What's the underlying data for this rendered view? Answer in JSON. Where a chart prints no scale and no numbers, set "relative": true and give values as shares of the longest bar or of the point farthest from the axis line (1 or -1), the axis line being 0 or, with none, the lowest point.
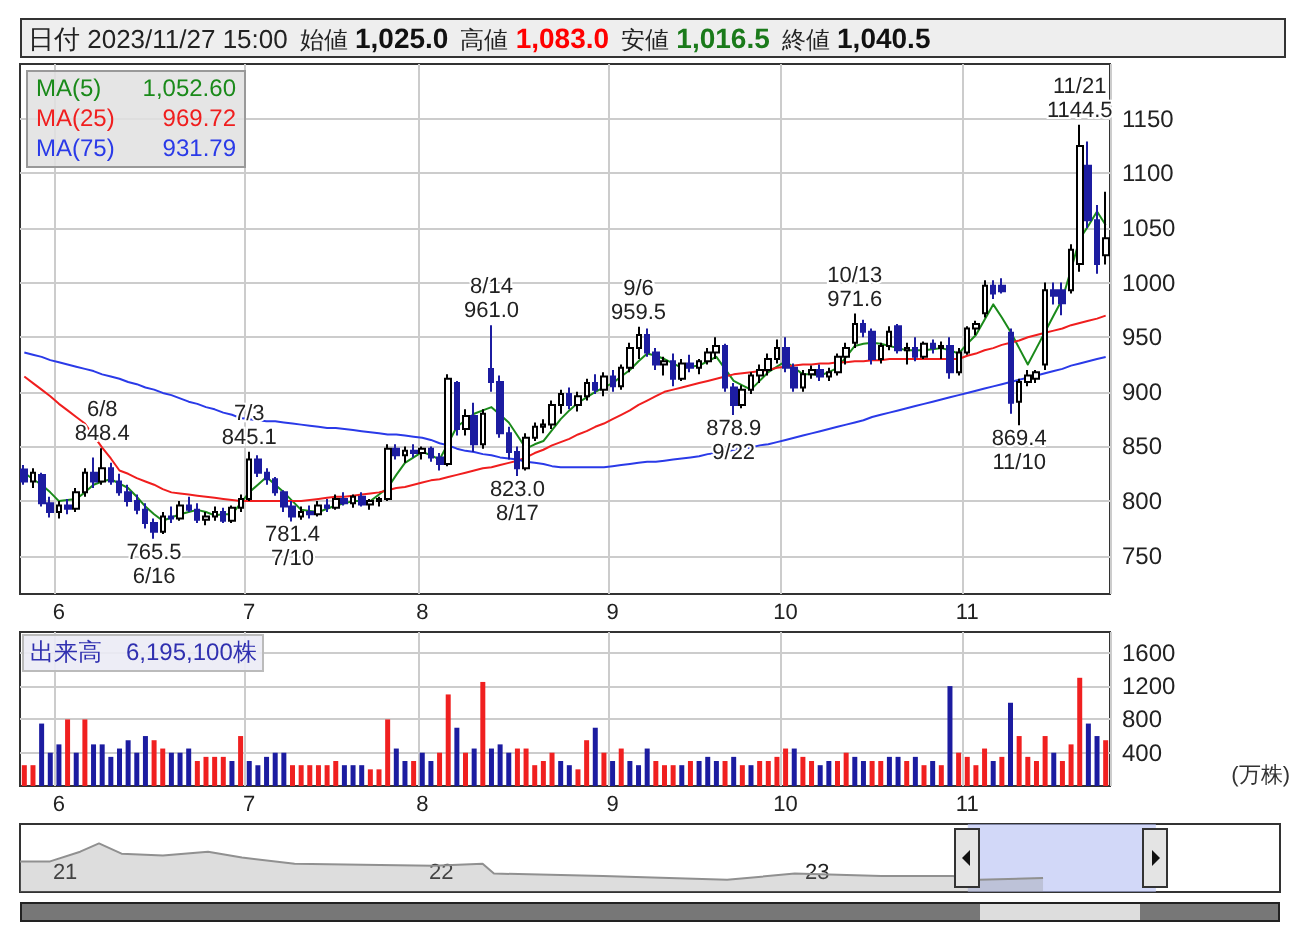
{
  "chart_data": [
    {
      "type": "candlestick",
      "title": "日付 2023/11/27 15:00",
      "colors": [
        "#1c1ca0",
        "#ffffff",
        "#1c1ca0",
        "#1c1ca0",
        "#ffffff",
        "#1c1ca0",
        "#ffffff",
        "#ffffff",
        "#1c1ca0",
        "#ffffff",
        "#1c1ca0",
        "#1c1ca0",
        "#1c1ca0",
        "#1c1ca0",
        "#1c1ca0",
        "#1c1ca0",
        "#ffffff",
        "#1c1ca0",
        "#ffffff",
        "#1c1ca0",
        "#1c1ca0",
        "#ffffff",
        "#ffffff",
        "#1c1ca0",
        "#ffffff",
        "#ffffff",
        "#ffffff",
        "#1c1ca0",
        "#1c1ca0",
        "#1c1ca0",
        "#1c1ca0",
        "#1c1ca0",
        "#ffffff",
        "#1c1ca0",
        "#ffffff",
        "#1c1ca0",
        "#ffffff",
        "#1c1ca0",
        "#ffffff",
        "#1c1ca0",
        "#ffffff",
        "#ffffff",
        "#ffffff",
        "#1c1ca0",
        "#ffffff",
        "#1c1ca0",
        "#ffffff",
        "#1c1ca0",
        "#1c1ca0",
        "#ffffff",
        "#1c1ca0",
        "#ffffff",
        "#1c1ca0",
        "#ffffff",
        "#1c1ca0",
        "#1c1ca0",
        "#1c1ca0",
        "#1c1ca0",
        "#ffffff",
        "#ffffff",
        "#ffffff",
        "#ffffff",
        "#ffffff",
        "#1c1ca0",
        "#ffffff",
        "#ffffff",
        "#1c1ca0",
        "#ffffff",
        "#1c1ca0",
        "#ffffff",
        "#ffffff",
        "#ffffff",
        "#1c1ca0",
        "#1c1ca0",
        "#ffffff",
        "#1c1ca0",
        "#ffffff",
        "#1c1ca0",
        "#ffffff",
        "#ffffff",
        "#ffffff",
        "#1c1ca0",
        "#1c1ca0",
        "#ffffff",
        "#ffffff",
        "#ffffff",
        "#ffffff",
        "#ffffff",
        "#1c1ca0",
        "#1c1ca0",
        "#ffffff",
        "#ffffff",
        "#1c1ca0",
        "#ffffff",
        "#ffffff",
        "#ffffff",
        "#ffffff",
        "#1c1ca0",
        "#1c1ca0",
        "#ffffff",
        "#ffffff",
        "#1c1ca0",
        "#ffffff",
        "#1c1ca0",
        "#ffffff",
        "#1c1ca0",
        "#ffffff",
        "#1c1ca0",
        "#ffffff",
        "#ffffff",
        "#ffffff",
        "#ffffff",
        "#1c1ca0",
        "#1c1ca0",
        "#1c1ca0",
        "#ffffff",
        "#ffffff",
        "#ffffff",
        "#ffffff",
        "#1c1ca0",
        "#1c1ca0",
        "#ffffff",
        "#ffffff",
        "#1c1ca0",
        "#1c1ca0",
        "#ffffff"
      ],
      "annotations": [
        "始値",
        "1,025.0",
        "高値",
        "1,083.0",
        "安値",
        "1,016.5",
        "終値",
        "1,040.5",
        "1,052.60",
        "969.72",
        "931.79",
        {
          "text": "6/8\n848.4",
          "y": 848.4
        },
        {
          "text": "765.5\n6/16",
          "y": 765.5
        },
        {
          "text": "7/3\n845.1",
          "y": 845.1
        },
        {
          "text": "781.4\n7/10",
          "y": 781.4
        },
        {
          "text": "8/14\n961.0",
          "y": 961.0
        },
        {
          "text": "823.0\n8/17",
          "y": 823.0
        },
        {
          "text": "9/6\n959.5",
          "y": 959.5
        },
        {
          "text": "878.9\n9/22",
          "y": 878.9
        },
        {
          "text": "10/13\n971.6",
          "y": 971.6
        },
        {
          "text": "869.4\n11/10",
          "y": 869.4
        },
        {
          "text": "11/21\n1144.5",
          "y": 1144.5
        }
      ],
      "categories": [
        null,
        null,
        null,
        null,
        "6",
        null,
        null,
        null,
        null,
        null,
        null,
        null,
        null,
        null,
        null,
        null,
        null,
        null,
        null,
        null,
        null,
        null,
        null,
        null,
        null,
        null,
        "7",
        null,
        null,
        null,
        null,
        null,
        null,
        null,
        null,
        null,
        null,
        null,
        null,
        null,
        null,
        null,
        null,
        null,
        null,
        null,
        "8",
        null,
        null,
        null,
        null,
        null,
        null,
        null,
        null,
        null,
        null,
        null,
        null,
        null,
        null,
        null,
        null,
        null,
        null,
        null,
        null,
        null,
        "9",
        null,
        null,
        null,
        null,
        null,
        null,
        null,
        null,
        null,
        null,
        null,
        null,
        null,
        null,
        null,
        null,
        null,
        null,
        null,
        "10",
        null,
        null,
        null,
        null,
        null,
        null,
        null,
        null,
        null,
        null,
        null,
        null,
        null,
        null,
        null,
        null,
        null,
        null,
        null,
        null,
        "11",
        null,
        null,
        null,
        null,
        null,
        null,
        null,
        null,
        null,
        null,
        null,
        null,
        null,
        null,
        null,
        null
      ],
      "ohlc": [
        [
          829,
          833,
          815,
          818
        ],
        [
          818,
          830,
          812,
          826
        ],
        [
          824,
          826,
          795,
          798
        ],
        [
          798,
          804,
          785,
          790
        ],
        [
          790,
          800,
          784,
          796
        ],
        [
          796,
          802,
          788,
          793
        ],
        [
          793,
          812,
          790,
          808
        ],
        [
          808,
          830,
          804,
          826
        ],
        [
          826,
          840,
          812,
          818
        ],
        [
          818,
          848.4,
          815,
          830
        ],
        [
          830,
          835,
          815,
          818
        ],
        [
          818,
          825,
          805,
          808
        ],
        [
          808,
          815,
          795,
          800
        ],
        [
          800,
          806,
          788,
          792
        ],
        [
          792,
          798,
          775,
          780
        ],
        [
          780,
          784,
          765.5,
          772
        ],
        [
          772,
          790,
          770,
          786
        ],
        [
          786,
          795,
          780,
          784
        ],
        [
          784,
          800,
          782,
          796
        ],
        [
          796,
          804,
          790,
          792
        ],
        [
          792,
          798,
          780,
          783
        ],
        [
          783,
          790,
          778,
          786
        ],
        [
          786,
          795,
          782,
          790
        ],
        [
          790,
          794,
          780,
          782
        ],
        [
          782,
          796,
          780,
          794
        ],
        [
          794,
          806,
          790,
          802
        ],
        [
          802,
          845.1,
          800,
          838
        ],
        [
          838,
          842,
          822,
          826
        ],
        [
          826,
          830,
          815,
          820
        ],
        [
          820,
          822,
          805,
          808
        ],
        [
          808,
          810,
          790,
          795
        ],
        [
          795,
          800,
          781.4,
          786
        ],
        [
          786,
          795,
          783,
          790
        ],
        [
          790,
          796,
          784,
          788
        ],
        [
          788,
          800,
          786,
          796
        ],
        [
          796,
          802,
          790,
          794
        ],
        [
          794,
          806,
          792,
          802
        ],
        [
          802,
          808,
          796,
          798
        ],
        [
          798,
          806,
          794,
          804
        ],
        [
          804,
          808,
          795,
          797
        ],
        [
          797,
          802,
          792,
          800
        ],
        [
          800,
          804,
          795,
          802
        ],
        [
          802,
          852,
          800,
          848
        ],
        [
          848,
          852,
          838,
          842
        ],
        [
          842,
          850,
          835,
          846
        ],
        [
          846,
          852,
          840,
          844
        ],
        [
          844,
          850,
          838,
          848
        ],
        [
          848,
          850,
          836,
          840
        ],
        [
          840,
          844,
          828,
          834
        ],
        [
          834,
          916,
          832,
          912
        ],
        [
          908,
          910,
          860,
          866
        ],
        [
          866,
          884,
          860,
          878
        ],
        [
          878,
          890,
          845,
          852
        ],
        [
          852,
          884,
          848,
          880
        ],
        [
          921,
          961.0,
          900,
          909
        ],
        [
          909,
          915,
          858,
          862
        ],
        [
          862,
          868,
          838,
          845
        ],
        [
          845,
          850,
          823.0,
          830
        ],
        [
          830,
          862,
          828,
          858
        ],
        [
          858,
          872,
          855,
          868
        ],
        [
          868,
          875,
          862,
          870
        ],
        [
          870,
          892,
          866,
          888
        ],
        [
          888,
          902,
          880,
          898
        ],
        [
          898,
          904,
          884,
          888
        ],
        [
          888,
          900,
          882,
          896
        ],
        [
          896,
          912,
          892,
          908
        ],
        [
          908,
          916,
          898,
          902
        ],
        [
          902,
          918,
          896,
          914
        ],
        [
          914,
          920,
          900,
          905
        ],
        [
          905,
          925,
          902,
          922
        ],
        [
          922,
          945,
          918,
          940
        ],
        [
          940,
          959.5,
          930,
          952
        ],
        [
          952,
          958,
          932,
          936
        ],
        [
          936,
          940,
          920,
          925
        ],
        [
          925,
          932,
          915,
          928
        ],
        [
          928,
          935,
          905,
          912
        ],
        [
          912,
          930,
          910,
          926
        ],
        [
          926,
          934,
          918,
          922
        ],
        [
          922,
          930,
          916,
          928
        ],
        [
          928,
          940,
          925,
          936
        ],
        [
          936,
          950,
          930,
          942
        ],
        [
          942,
          944,
          900,
          904
        ],
        [
          904,
          908,
          878.9,
          888
        ],
        [
          888,
          906,
          885,
          902
        ],
        [
          902,
          918,
          898,
          915
        ],
        [
          915,
          925,
          908,
          920
        ],
        [
          920,
          935,
          915,
          930
        ],
        [
          930,
          948,
          926,
          940
        ],
        [
          940,
          950,
          918,
          922
        ],
        [
          922,
          926,
          900,
          904
        ],
        [
          904,
          920,
          900,
          916
        ],
        [
          916,
          924,
          912,
          920
        ],
        [
          920,
          925,
          910,
          914
        ],
        [
          914,
          922,
          910,
          918
        ],
        [
          918,
          935,
          915,
          932
        ],
        [
          932,
          945,
          925,
          940
        ],
        [
          945,
          971.6,
          940,
          962
        ],
        [
          962,
          966,
          950,
          955
        ],
        [
          955,
          958,
          925,
          930
        ],
        [
          930,
          945,
          926,
          942
        ],
        [
          942,
          960,
          938,
          955
        ],
        [
          960,
          962,
          935,
          938
        ],
        [
          938,
          945,
          925,
          940
        ],
        [
          940,
          950,
          928,
          932
        ],
        [
          932,
          946,
          930,
          944
        ],
        [
          944,
          948,
          935,
          940
        ],
        [
          940,
          946,
          930,
          942
        ],
        [
          942,
          950,
          912,
          918
        ],
        [
          918,
          940,
          915,
          936
        ],
        [
          936,
          960,
          934,
          958
        ],
        [
          958,
          965,
          952,
          962
        ],
        [
          972,
          1002,
          968,
          997
        ],
        [
          997,
          1002,
          985,
          990
        ],
        [
          997,
          1004,
          990,
          992
        ],
        [
          954,
          958,
          880,
          890
        ],
        [
          891,
          912,
          869.4,
          909
        ],
        [
          909,
          920,
          905,
          915
        ],
        [
          912,
          920,
          908,
          918
        ],
        [
          925,
          1000,
          920,
          993
        ],
        [
          993,
          1000,
          980,
          988
        ],
        [
          993,
          1000,
          970,
          981
        ],
        [
          993,
          1035,
          990,
          1030
        ],
        [
          1017,
          1144.5,
          1010,
          1125
        ],
        [
          1107,
          1129,
          1050,
          1057
        ],
        [
          1057,
          1071,
          1008,
          1017
        ],
        [
          1025,
          1083,
          1016.5,
          1040.5
        ]
      ],
      "series": [
        {
          "name": "MA(5)",
          "type": "line",
          "color": "#1a8a1a",
          "values": [
            826,
            820,
            815,
            808,
            800,
            801,
            802,
            808,
            815,
            818,
            820,
            816,
            812,
            804,
            795,
            788,
            782,
            785,
            788,
            790,
            792,
            790,
            787,
            788,
            788,
            798,
            808,
            815,
            822,
            815,
            808,
            800,
            792,
            791,
            790,
            793,
            796,
            798,
            800,
            800,
            800,
            806,
            812,
            824,
            835,
            840,
            845,
            842,
            838,
            853,
            868,
            874,
            880,
            883,
            886,
            879,
            872,
            860,
            848,
            852,
            855,
            865,
            875,
            883,
            890,
            895,
            900,
            904,
            908,
            914,
            920,
            928,
            935,
            933,
            930,
            926,
            922,
            923,
            924,
            928,
            932,
            921,
            910,
            906,
            902,
            910,
            918,
            923,
            928,
            922,
            916,
            916,
            915,
            918,
            922,
            932,
            942,
            944,
            945,
            944,
            942,
            940,
            938,
            938,
            938,
            939,
            940,
            938,
            935,
            944,
            952,
            966,
            980,
            968,
            955,
            940,
            925,
            940,
            955,
            970,
            985,
            1012,
            1040,
            1052,
            1065,
            1052.6
          ]
        },
        {
          "name": "MA(25)",
          "type": "line",
          "color": "#f01e1e",
          "values": [
            914,
            908,
            902,
            896,
            889,
            883,
            877,
            871,
            860,
            849,
            839,
            828,
            825,
            821,
            818,
            815,
            811,
            808,
            807,
            806,
            805,
            804,
            803,
            802,
            801,
            800,
            800,
            800,
            800,
            800,
            800,
            800,
            800,
            801,
            802,
            803,
            804,
            804,
            805,
            806,
            807,
            808,
            810,
            812,
            813,
            815,
            817,
            819,
            820,
            822,
            824,
            826,
            828,
            830,
            831,
            833,
            835,
            837,
            840,
            844,
            847,
            851,
            854,
            857,
            861,
            864,
            868,
            871,
            875,
            879,
            883,
            888,
            892,
            896,
            900,
            902,
            904,
            906,
            908,
            910,
            912,
            914,
            916,
            917,
            918,
            919,
            920,
            922,
            923,
            924,
            925,
            925,
            926,
            926,
            927,
            927,
            928,
            928,
            929,
            929,
            930,
            930,
            930,
            930,
            930,
            930,
            930,
            930,
            930,
            933,
            935,
            938,
            940,
            943,
            945,
            947,
            950,
            952,
            954,
            956,
            958,
            961,
            963,
            965,
            967,
            969.72
          ]
        },
        {
          "name": "MA(75)",
          "type": "line",
          "color": "#2a3ae8",
          "values": [
            936,
            934,
            932,
            929,
            927,
            925,
            923,
            921,
            919,
            916,
            914,
            912,
            909,
            907,
            904,
            902,
            899,
            897,
            894,
            891,
            889,
            886,
            884,
            881,
            879,
            876,
            875,
            874,
            873,
            873,
            872,
            871,
            870,
            869,
            868,
            867,
            867,
            866,
            865,
            864,
            863,
            862,
            861,
            861,
            860,
            859,
            858,
            856,
            853,
            851,
            848,
            846,
            845,
            843,
            842,
            840,
            839,
            838,
            836,
            835,
            834,
            832,
            831,
            831,
            831,
            831,
            831,
            831,
            832,
            833,
            834,
            835,
            836,
            836,
            837,
            838,
            839,
            840,
            841,
            843,
            844,
            845,
            847,
            848,
            849,
            851,
            852,
            854,
            856,
            858,
            860,
            862,
            864,
            866,
            868,
            870,
            872,
            874,
            877,
            879,
            881,
            883,
            885,
            887,
            889,
            891,
            893,
            895,
            897,
            899,
            901,
            903,
            905,
            907,
            909,
            911,
            913,
            915,
            917,
            919,
            921,
            924,
            926,
            928,
            930,
            931.79
          ]
        }
      ],
      "ylim": [
        715,
        1200
      ],
      "yticks": [
        750,
        800,
        850,
        900,
        950,
        1000,
        1050,
        1100,
        1150
      ],
      "grid": true,
      "legend": "top left"
    },
    {
      "type": "bar",
      "title": "出来高　6,195,100株",
      "ylabel": "(万株)",
      "categories": [
        null,
        null,
        null,
        null,
        "6",
        null,
        null,
        null,
        null,
        null,
        null,
        null,
        null,
        null,
        null,
        null,
        null,
        null,
        null,
        null,
        null,
        null,
        null,
        null,
        null,
        null,
        "7",
        null,
        null,
        null,
        null,
        null,
        null,
        null,
        null,
        null,
        null,
        null,
        null,
        null,
        null,
        null,
        null,
        null,
        null,
        null,
        "8",
        null,
        null,
        null,
        null,
        null,
        null,
        null,
        null,
        null,
        null,
        null,
        null,
        null,
        null,
        null,
        null,
        null,
        null,
        null,
        null,
        null,
        "9",
        null,
        null,
        null,
        null,
        null,
        null,
        null,
        null,
        null,
        null,
        null,
        null,
        null,
        null,
        null,
        null,
        null,
        null,
        null,
        "10",
        null,
        null,
        null,
        null,
        null,
        null,
        null,
        null,
        null,
        null,
        null,
        null,
        null,
        null,
        null,
        null,
        null,
        null,
        null,
        null,
        "11",
        null,
        null,
        null,
        null,
        null,
        null,
        null,
        null,
        null,
        null,
        null,
        null,
        null,
        null,
        null,
        null
      ],
      "values": [
        250,
        250,
        750,
        400,
        500,
        800,
        400,
        800,
        500,
        500,
        350,
        450,
        550,
        400,
        600,
        550,
        450,
        400,
        400,
        450,
        300,
        350,
        350,
        350,
        300,
        600,
        300,
        250,
        350,
        400,
        400,
        250,
        250,
        250,
        250,
        250,
        300,
        250,
        250,
        250,
        200,
        200,
        800,
        450,
        300,
        300,
        400,
        300,
        400,
        1100,
        700,
        400,
        450,
        1250,
        450,
        500,
        400,
        450,
        450,
        250,
        300,
        400,
        300,
        250,
        200,
        550,
        700,
        400,
        300,
        450,
        300,
        250,
        450,
        300,
        250,
        250,
        250,
        300,
        300,
        350,
        300,
        300,
        350,
        250,
        250,
        300,
        300,
        350,
        450,
        450,
        350,
        300,
        250,
        300,
        300,
        400,
        350,
        300,
        300,
        300,
        350,
        350,
        300,
        350,
        250,
        300,
        250,
        1200,
        400,
        350,
        250,
        450,
        300,
        350,
        1000,
        600,
        350,
        300,
        600,
        400,
        300,
        500,
        1300,
        750,
        600,
        550
      ],
      "colors": [
        "#f02020",
        "#f02020",
        "#1c1ca0",
        "#1c1ca0",
        "#1c1ca0",
        "#f02020",
        "#1c1ca0",
        "#f02020",
        "#1c1ca0",
        "#1c1ca0",
        "#1c1ca0",
        "#1c1ca0",
        "#1c1ca0",
        "#1c1ca0",
        "#1c1ca0",
        "#f02020",
        "#f02020",
        "#1c1ca0",
        "#1c1ca0",
        "#1c1ca0",
        "#f02020",
        "#f02020",
        "#f02020",
        "#f02020",
        "#1c1ca0",
        "#f02020",
        "#1c1ca0",
        "#1c1ca0",
        "#1c1ca0",
        "#1c1ca0",
        "#1c1ca0",
        "#f02020",
        "#f02020",
        "#f02020",
        "#f02020",
        "#f02020",
        "#f02020",
        "#1c1ca0",
        "#1c1ca0",
        "#1c1ca0",
        "#f02020",
        "#f02020",
        "#f02020",
        "#1c1ca0",
        "#1c1ca0",
        "#f02020",
        "#1c1ca0",
        "#1c1ca0",
        "#f02020",
        "#f02020",
        "#1c1ca0",
        "#f02020",
        "#1c1ca0",
        "#f02020",
        "#1c1ca0",
        "#1c1ca0",
        "#1c1ca0",
        "#f02020",
        "#f02020",
        "#f02020",
        "#f02020",
        "#f02020",
        "#1c1ca0",
        "#1c1ca0",
        "#f02020",
        "#f02020",
        "#1c1ca0",
        "#f02020",
        "#1c1ca0",
        "#f02020",
        "#1c1ca0",
        "#1c1ca0",
        "#1c1ca0",
        "#f02020",
        "#f02020",
        "#f02020",
        "#1c1ca0",
        "#f02020",
        "#1c1ca0",
        "#1c1ca0",
        "#1c1ca0",
        "#f02020",
        "#1c1ca0",
        "#f02020",
        "#1c1ca0",
        "#f02020",
        "#f02020",
        "#f02020",
        "#f02020",
        "#1c1ca0",
        "#f02020",
        "#f02020",
        "#1c1ca0",
        "#1c1ca0",
        "#f02020",
        "#f02020",
        "#1c1ca0",
        "#1c1ca0",
        "#f02020",
        "#f02020",
        "#1c1ca0",
        "#1c1ca0",
        "#f02020",
        "#1c1ca0",
        "#f02020",
        "#1c1ca0",
        "#f02020",
        "#1c1ca0",
        "#f02020",
        "#f02020",
        "#f02020",
        "#f02020",
        "#1c1ca0",
        "#f02020",
        "#1c1ca0",
        "#f02020",
        "#f02020",
        "#f02020",
        "#f02020",
        "#1c1ca0",
        "#f02020",
        "#f02020",
        "#f02020",
        "#1c1ca0",
        "#1c1ca0",
        "#f02020"
      ],
      "ylim": [
        0,
        1850
      ],
      "yticks": [
        400,
        800,
        1200,
        1600
      ],
      "grid": true
    },
    {
      "type": "area",
      "relative": true,
      "color": "#909090",
      "x": [
        20.88,
        20.96,
        21.04,
        21.09,
        21.15,
        21.26,
        21.38,
        21.47,
        21.61,
        21.79,
        21.98,
        22.11,
        22.14,
        22.43,
        22.76,
        22.94,
        23.17,
        23.36,
        23.43,
        23.6
      ],
      "values": [
        0.63,
        0.63,
        0.83,
        1,
        0.79,
        0.75,
        0.83,
        0.71,
        0.58,
        0.56,
        0.54,
        0.58,
        0.38,
        0.33,
        0.25,
        0.38,
        0.33,
        0.33,
        0.25,
        0.29
      ],
      "xlim": [
        20.88,
        24.23
      ],
      "xticks": [
        21,
        22,
        23
      ],
      "tick_labels": "x",
      "bands": [
        {
          "axis": "x",
          "from": 23.4,
          "to": 23.9,
          "color": "#b4bef4"
        }
      ]
    }
  ]
}
